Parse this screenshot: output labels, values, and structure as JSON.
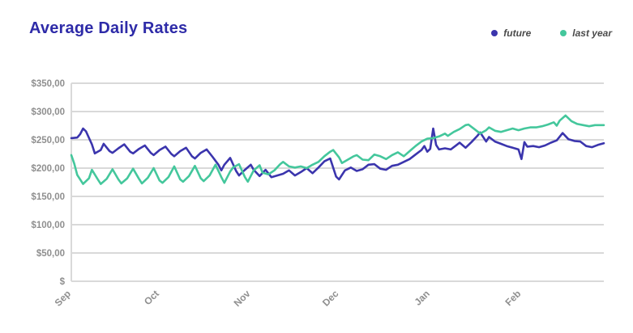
{
  "page": {
    "title": "Average Daily Rates"
  },
  "legend": {
    "items": [
      {
        "id": "future",
        "label": "future",
        "color": "#3b35ad"
      },
      {
        "id": "last_year",
        "label": "last year",
        "color": "#44c79c"
      }
    ]
  },
  "colors": {
    "title": "#2e2ba8",
    "future_line": "#3b35ad",
    "last_year_line": "#44c79c",
    "grid_line": "#d9d9d9",
    "axis_line": "#d9d9d9",
    "tick_label": "#8f8f8f",
    "background": "#ffffff"
  },
  "chart_data": {
    "type": "line",
    "title": "Average Daily Rates",
    "xlabel": "",
    "ylabel": "",
    "grid": true,
    "legend_position": "top-right",
    "x_axis": {
      "unit": "days (Sep 1 = 0)",
      "range": [
        0,
        181
      ],
      "tick_days": [
        0,
        30,
        61,
        91,
        122,
        153
      ],
      "tick_labels": [
        "Sep",
        "Oct",
        "Nov",
        "Dec",
        "Jan",
        "Feb"
      ],
      "tick_label_rotation_deg": -45
    },
    "y_axis": {
      "min": 0,
      "max": 350,
      "step": 50,
      "tick_values": [
        350,
        300,
        250,
        200,
        150,
        100,
        50,
        0
      ],
      "tick_labels": [
        "$350,00",
        "$300,00",
        "$250,00",
        "$200,00",
        "$150,00",
        "$100,00",
        "$50,00",
        "$"
      ]
    },
    "series": [
      {
        "name": "future",
        "color": "#3b35ad",
        "points": [
          [
            0,
            253
          ],
          [
            2,
            254
          ],
          [
            3,
            260
          ],
          [
            4,
            270
          ],
          [
            5,
            265
          ],
          [
            7,
            242
          ],
          [
            8,
            226
          ],
          [
            10,
            232
          ],
          [
            11,
            243
          ],
          [
            13,
            230
          ],
          [
            14,
            227
          ],
          [
            16,
            235
          ],
          [
            18,
            242
          ],
          [
            20,
            229
          ],
          [
            21,
            226
          ],
          [
            23,
            234
          ],
          [
            25,
            240
          ],
          [
            27,
            227
          ],
          [
            28,
            223
          ],
          [
            30,
            232
          ],
          [
            32,
            238
          ],
          [
            34,
            225
          ],
          [
            35,
            221
          ],
          [
            37,
            230
          ],
          [
            39,
            236
          ],
          [
            41,
            221
          ],
          [
            42,
            217
          ],
          [
            44,
            227
          ],
          [
            46,
            233
          ],
          [
            48,
            220
          ],
          [
            50,
            206
          ],
          [
            51,
            196
          ],
          [
            52,
            206
          ],
          [
            54,
            218
          ],
          [
            56,
            195
          ],
          [
            57,
            187
          ],
          [
            59,
            197
          ],
          [
            61,
            206
          ],
          [
            62,
            197
          ],
          [
            64,
            186
          ],
          [
            66,
            197
          ],
          [
            68,
            184
          ],
          [
            70,
            187
          ],
          [
            72,
            190
          ],
          [
            74,
            196
          ],
          [
            76,
            187
          ],
          [
            78,
            193
          ],
          [
            80,
            200
          ],
          [
            82,
            191
          ],
          [
            84,
            201
          ],
          [
            86,
            212
          ],
          [
            88,
            217
          ],
          [
            90,
            185
          ],
          [
            91,
            180
          ],
          [
            93,
            196
          ],
          [
            95,
            201
          ],
          [
            97,
            195
          ],
          [
            99,
            198
          ],
          [
            101,
            206
          ],
          [
            103,
            207
          ],
          [
            105,
            199
          ],
          [
            107,
            197
          ],
          [
            109,
            204
          ],
          [
            111,
            206
          ],
          [
            113,
            211
          ],
          [
            115,
            216
          ],
          [
            117,
            224
          ],
          [
            119,
            232
          ],
          [
            120,
            239
          ],
          [
            121,
            229
          ],
          [
            122,
            234
          ],
          [
            123,
            270
          ],
          [
            124,
            241
          ],
          [
            125,
            233
          ],
          [
            127,
            235
          ],
          [
            129,
            233
          ],
          [
            131,
            241
          ],
          [
            132,
            245
          ],
          [
            134,
            236
          ],
          [
            136,
            246
          ],
          [
            138,
            257
          ],
          [
            139,
            263
          ],
          [
            141,
            247
          ],
          [
            142,
            255
          ],
          [
            144,
            247
          ],
          [
            146,
            243
          ],
          [
            148,
            239
          ],
          [
            150,
            236
          ],
          [
            152,
            233
          ],
          [
            153,
            216
          ],
          [
            154,
            246
          ],
          [
            155,
            238
          ],
          [
            157,
            239
          ],
          [
            159,
            237
          ],
          [
            161,
            240
          ],
          [
            163,
            245
          ],
          [
            165,
            249
          ],
          [
            167,
            262
          ],
          [
            169,
            251
          ],
          [
            171,
            248
          ],
          [
            173,
            247
          ],
          [
            175,
            239
          ],
          [
            177,
            237
          ],
          [
            179,
            241
          ],
          [
            181,
            244
          ]
        ]
      },
      {
        "name": "last year",
        "color": "#44c79c",
        "points": [
          [
            0,
            223
          ],
          [
            1,
            208
          ],
          [
            2,
            188
          ],
          [
            4,
            172
          ],
          [
            6,
            182
          ],
          [
            7,
            197
          ],
          [
            9,
            180
          ],
          [
            10,
            172
          ],
          [
            12,
            181
          ],
          [
            14,
            198
          ],
          [
            16,
            180
          ],
          [
            17,
            173
          ],
          [
            19,
            182
          ],
          [
            21,
            199
          ],
          [
            23,
            181
          ],
          [
            24,
            173
          ],
          [
            26,
            183
          ],
          [
            28,
            200
          ],
          [
            30,
            178
          ],
          [
            31,
            174
          ],
          [
            33,
            184
          ],
          [
            35,
            203
          ],
          [
            37,
            180
          ],
          [
            38,
            176
          ],
          [
            40,
            186
          ],
          [
            42,
            204
          ],
          [
            44,
            182
          ],
          [
            45,
            177
          ],
          [
            47,
            187
          ],
          [
            49,
            206
          ],
          [
            51,
            184
          ],
          [
            52,
            174
          ],
          [
            54,
            194
          ],
          [
            55,
            201
          ],
          [
            57,
            207
          ],
          [
            59,
            184
          ],
          [
            60,
            176
          ],
          [
            62,
            196
          ],
          [
            64,
            205
          ],
          [
            65,
            192
          ],
          [
            67,
            189
          ],
          [
            69,
            196
          ],
          [
            71,
            207
          ],
          [
            72,
            211
          ],
          [
            74,
            203
          ],
          [
            76,
            201
          ],
          [
            78,
            203
          ],
          [
            80,
            200
          ],
          [
            82,
            206
          ],
          [
            84,
            211
          ],
          [
            86,
            221
          ],
          [
            88,
            229
          ],
          [
            89,
            232
          ],
          [
            91,
            219
          ],
          [
            92,
            209
          ],
          [
            94,
            215
          ],
          [
            96,
            221
          ],
          [
            97,
            223
          ],
          [
            99,
            215
          ],
          [
            101,
            214
          ],
          [
            103,
            224
          ],
          [
            105,
            221
          ],
          [
            107,
            216
          ],
          [
            109,
            223
          ],
          [
            111,
            228
          ],
          [
            113,
            221
          ],
          [
            115,
            230
          ],
          [
            117,
            239
          ],
          [
            119,
            247
          ],
          [
            121,
            252
          ],
          [
            123,
            253
          ],
          [
            125,
            256
          ],
          [
            127,
            261
          ],
          [
            128,
            257
          ],
          [
            130,
            264
          ],
          [
            132,
            269
          ],
          [
            134,
            276
          ],
          [
            135,
            277
          ],
          [
            137,
            269
          ],
          [
            139,
            261
          ],
          [
            141,
            267
          ],
          [
            142,
            272
          ],
          [
            144,
            266
          ],
          [
            146,
            264
          ],
          [
            148,
            267
          ],
          [
            150,
            270
          ],
          [
            152,
            267
          ],
          [
            154,
            270
          ],
          [
            156,
            272
          ],
          [
            158,
            272
          ],
          [
            160,
            274
          ],
          [
            162,
            277
          ],
          [
            164,
            281
          ],
          [
            165,
            275
          ],
          [
            166,
            284
          ],
          [
            168,
            293
          ],
          [
            170,
            283
          ],
          [
            172,
            278
          ],
          [
            174,
            276
          ],
          [
            176,
            274
          ],
          [
            178,
            276
          ],
          [
            181,
            276
          ]
        ]
      }
    ]
  }
}
